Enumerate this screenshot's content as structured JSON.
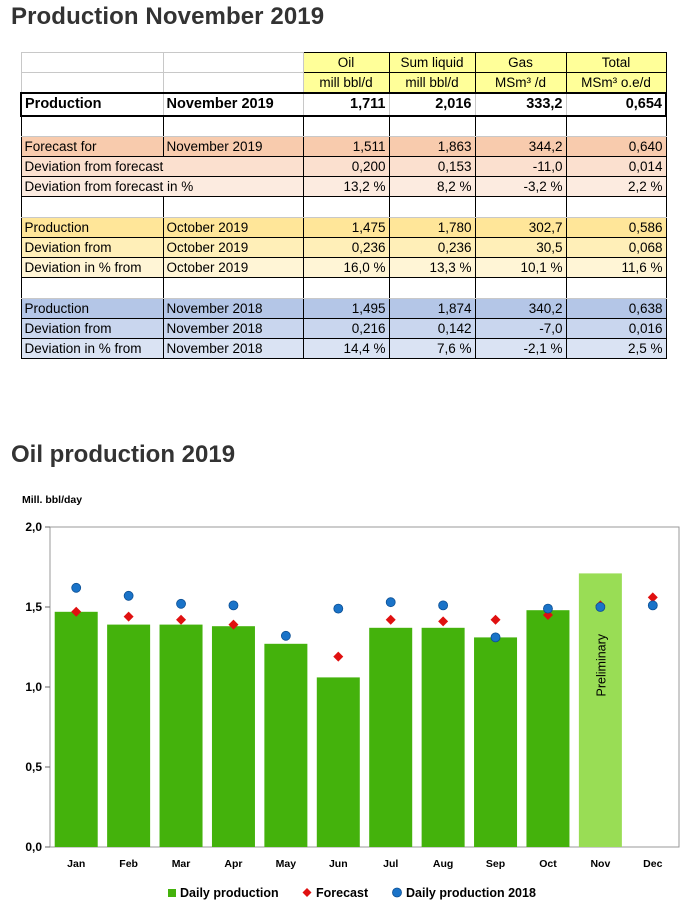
{
  "header": {
    "title": "Production November 2019"
  },
  "table": {
    "columns": [
      {
        "name": "Oil",
        "unit": "mill bbl/d"
      },
      {
        "name": "Sum liquid",
        "unit": "mill bbl/d"
      },
      {
        "name": "Gas",
        "unit": "MSm³ /d"
      },
      {
        "name": "Total",
        "unit": "MSm³ o.e/d"
      }
    ],
    "production": {
      "label": "Production",
      "period": "November 2019",
      "values": [
        "1,711",
        "2,016",
        "333,2",
        "0,654"
      ]
    },
    "forecast": [
      {
        "label": "Forecast for",
        "period": "November 2019",
        "values": [
          "1,511",
          "1,863",
          "344,2",
          "0,640"
        ]
      },
      {
        "label": "Deviation from forecast",
        "period": "",
        "values": [
          "0,200",
          "0,153",
          "-11,0",
          "0,014"
        ]
      },
      {
        "label": "Deviation from forecast in %",
        "period": "",
        "values": [
          "13,2 %",
          "8,2 %",
          "-3,2 %",
          "2,2 %"
        ]
      }
    ],
    "october": [
      {
        "label": "Production",
        "period": "October 2019",
        "values": [
          "1,475",
          "1,780",
          "302,7",
          "0,586"
        ]
      },
      {
        "label": "Deviation from",
        "period": "October 2019",
        "values": [
          "0,236",
          "0,236",
          "30,5",
          "0,068"
        ]
      },
      {
        "label": "Deviation  in % from",
        "period": "October 2019",
        "values": [
          "16,0 %",
          "13,3 %",
          "10,1 %",
          "11,6 %"
        ]
      }
    ],
    "november_2018": [
      {
        "label": "Production",
        "period": "November 2018",
        "values": [
          "1,495",
          "1,874",
          "340,2",
          "0,638"
        ]
      },
      {
        "label": "Deviation from",
        "period": "November 2018",
        "values": [
          "0,216",
          "0,142",
          "-7,0",
          "0,016"
        ]
      },
      {
        "label": "Deviation  in % from",
        "period": "November 2018",
        "values": [
          "14,4 %",
          "7,6 %",
          "-2,1 %",
          "2,5 %"
        ]
      }
    ]
  },
  "chart_section": {
    "title": "Oil production 2019"
  },
  "chart_data": {
    "type": "bar",
    "title": "Oil production 2019",
    "ylabel": "Mill. bbl/day",
    "xlabel": "",
    "ylim": [
      0,
      2
    ],
    "yticks": [
      "0,0",
      "0,5",
      "1,0",
      "1,5",
      "2,0"
    ],
    "ytick_values": [
      0,
      0.5,
      1,
      1.5,
      2
    ],
    "categories": [
      "Jan",
      "Feb",
      "Mar",
      "Apr",
      "May",
      "Jun",
      "Jul",
      "Aug",
      "Sep",
      "Oct",
      "Nov",
      "Dec"
    ],
    "series": [
      {
        "name": "Daily production",
        "type": "bar",
        "color": "#44b20c",
        "values": [
          1.47,
          1.39,
          1.39,
          1.38,
          1.27,
          1.06,
          1.37,
          1.37,
          1.31,
          1.48,
          null,
          null
        ]
      },
      {
        "name": "Preliminary",
        "type": "bar",
        "color": "#99dd55",
        "label": "Preliminary",
        "values": [
          null,
          null,
          null,
          null,
          null,
          null,
          null,
          null,
          null,
          null,
          1.71,
          null
        ]
      },
      {
        "name": "Forecast",
        "type": "diamond",
        "color": "#e01010",
        "values": [
          1.47,
          1.44,
          1.42,
          1.39,
          null,
          1.19,
          1.42,
          1.41,
          1.42,
          1.45,
          1.51,
          1.56
        ]
      },
      {
        "name": "Daily production 2018",
        "type": "dot",
        "color": "#1a73c8",
        "values": [
          1.62,
          1.57,
          1.52,
          1.51,
          1.32,
          1.49,
          1.53,
          1.51,
          1.31,
          1.49,
          1.5,
          1.51
        ]
      }
    ],
    "legend": [
      "Daily production",
      "Forecast",
      "Daily production 2018"
    ],
    "legend_position": "bottom",
    "grid": false
  }
}
